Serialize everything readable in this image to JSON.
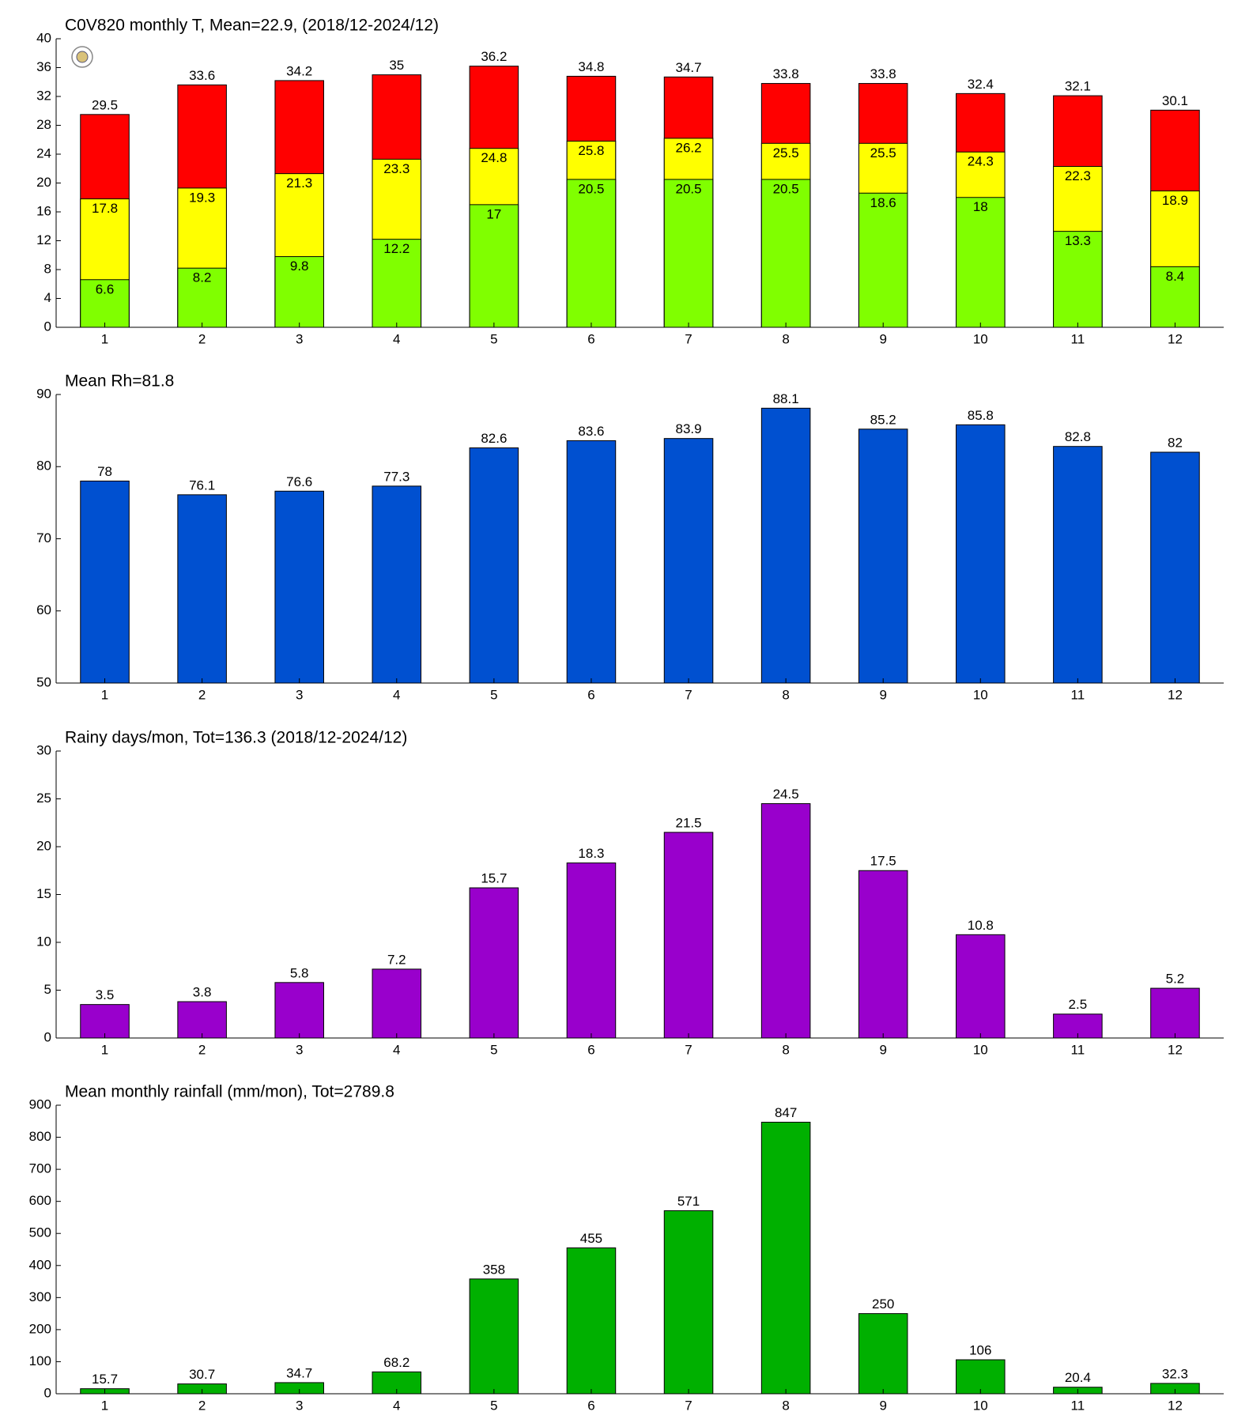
{
  "chart_data": [
    {
      "type": "bar",
      "title": "C0V820 monthly T, Mean=22.9, (2018/12-2024/12)",
      "categories": [
        "1",
        "2",
        "3",
        "4",
        "5",
        "6",
        "7",
        "8",
        "9",
        "10",
        "11",
        "12"
      ],
      "series": [
        {
          "color": "#ff0000",
          "values": [
            29.5,
            33.6,
            34.2,
            35,
            36.2,
            34.8,
            34.7,
            33.8,
            33.8,
            32.4,
            32.1,
            30.1
          ]
        },
        {
          "color": "#ffff00",
          "values": [
            17.8,
            19.3,
            21.3,
            23.3,
            24.8,
            25.8,
            26.2,
            25.5,
            25.5,
            24.3,
            22.3,
            18.9
          ]
        },
        {
          "color": "#80ff00",
          "values": [
            6.6,
            8.2,
            9.8,
            12.2,
            17,
            20.5,
            20.5,
            20.5,
            18.6,
            18,
            13.3,
            8.4
          ]
        }
      ],
      "ylim": [
        0,
        40
      ],
      "yticks": [
        0,
        4,
        8,
        12,
        16,
        20,
        24,
        28,
        32,
        36,
        40
      ]
    },
    {
      "type": "bar",
      "title": "Mean Rh=81.8",
      "categories": [
        "1",
        "2",
        "3",
        "4",
        "5",
        "6",
        "7",
        "8",
        "9",
        "10",
        "11",
        "12"
      ],
      "values": [
        78,
        76.1,
        76.6,
        77.3,
        82.6,
        83.6,
        83.9,
        88.1,
        85.2,
        85.8,
        82.8,
        82
      ],
      "color": "#0050d0",
      "ylim": [
        50,
        90
      ],
      "yticks": [
        50,
        60,
        70,
        80,
        90
      ]
    },
    {
      "type": "bar",
      "title": "Rainy days/mon, Tot=136.3 (2018/12-2024/12)",
      "categories": [
        "1",
        "2",
        "3",
        "4",
        "5",
        "6",
        "7",
        "8",
        "9",
        "10",
        "11",
        "12"
      ],
      "values": [
        3.5,
        3.8,
        5.8,
        7.2,
        15.7,
        18.3,
        21.5,
        24.5,
        17.5,
        10.8,
        2.5,
        5.2
      ],
      "color": "#9900cc",
      "ylim": [
        0,
        30
      ],
      "yticks": [
        0,
        5,
        10,
        15,
        20,
        25,
        30
      ]
    },
    {
      "type": "bar",
      "title": "Mean monthly rainfall (mm/mon), Tot=2789.8",
      "categories": [
        "1",
        "2",
        "3",
        "4",
        "5",
        "6",
        "7",
        "8",
        "9",
        "10",
        "11",
        "12"
      ],
      "values": [
        15.7,
        30.7,
        34.7,
        68.2,
        358,
        455,
        571,
        847,
        250,
        106,
        20.4,
        32.3
      ],
      "color": "#00b000",
      "ylim": [
        0,
        900
      ],
      "yticks": [
        0,
        100,
        200,
        300,
        400,
        500,
        600,
        700,
        800,
        900
      ]
    }
  ]
}
